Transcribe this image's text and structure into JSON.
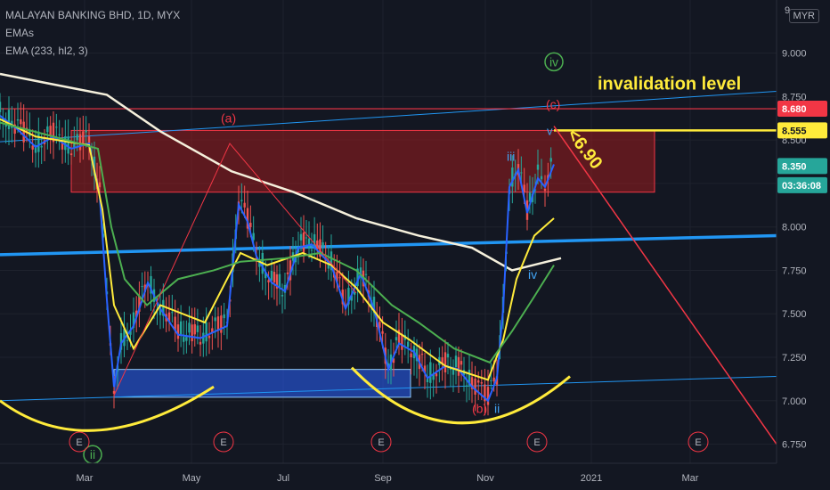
{
  "legend": {
    "symbol": "MALAYAN BANKING BHD, 1D, MYX",
    "ema_label": "EMAs",
    "ema_params": "EMA (233, hl2, 3)"
  },
  "currency": "MYR",
  "colors": {
    "bg": "#131722",
    "up": "#26a69a",
    "down": "#ef5350",
    "ema_fast_blue": "#2962ff",
    "ema_yellow": "#ffeb3b",
    "ema_green": "#4caf50",
    "ema_233": "#f5f0dc",
    "zone_red": "#b71c1c",
    "zone_blue": "#2962ff",
    "trendline_blue": "#2196f3",
    "invalidation_red": "#f23645",
    "yellow_level": "#ffeb3b",
    "text_yellow": "#ffeb3b"
  },
  "price_axis": {
    "ticks": [
      "9.000",
      "8.750",
      "8.500",
      "8.250",
      "8.000",
      "7.750",
      "7.500",
      "7.250",
      "7.000",
      "6.750"
    ],
    "top_partial": "9"
  },
  "time_axis": {
    "ticks": [
      "Mar",
      "May",
      "Jul",
      "Sep",
      "Nov",
      "2021",
      "Mar"
    ]
  },
  "price_tags": [
    {
      "label": "8.680",
      "value": 8.68,
      "bg": "#f23645",
      "fg": "#ffffff"
    },
    {
      "label": "8.555",
      "value": 8.555,
      "bg": "#ffeb3b",
      "fg": "#131722"
    },
    {
      "label": "8.350",
      "value": 8.35,
      "bg": "#26a69a",
      "fg": "#ffffff"
    },
    {
      "label": "03:36:08",
      "value": 8.24,
      "bg": "#26a69a",
      "fg": "#ffffff"
    }
  ],
  "annotations": {
    "invalidation": "invalidation level",
    "target": "<6.90",
    "wave_a": "(a)",
    "wave_b": "(b)",
    "wave_c": "(c)",
    "wave_i": "i",
    "wave_ii": "ii",
    "wave_iii": "iii",
    "wave_iv": "iv",
    "wave_v": "v",
    "wave_iv_circle": "iv",
    "wave_ii_circle": "ii",
    "earnings": "E"
  },
  "chart_data": {
    "type": "candlestick",
    "title": "MALAYAN BANKING BHD, 1D, MYX",
    "ylim": [
      6.64,
      9.28
    ],
    "levels": {
      "invalidation": 8.68,
      "yellow": 8.555,
      "last": 8.35
    },
    "close_path": [
      [
        "Jan",
        8.64
      ],
      [
        "Jan",
        8.55
      ],
      [
        "Feb",
        8.4
      ],
      [
        "Feb",
        8.48
      ],
      [
        "Mar",
        8.46
      ],
      [
        "Mar",
        7.4
      ],
      [
        "Mar",
        7.15
      ],
      [
        "Apr",
        7.4
      ],
      [
        "Apr",
        7.62
      ],
      [
        "May",
        7.45
      ],
      [
        "May",
        7.4
      ],
      [
        "May",
        7.45
      ],
      [
        "Jun",
        8.15
      ],
      [
        "Jun",
        7.9
      ],
      [
        "Jun",
        7.8
      ],
      [
        "Jul",
        7.7
      ],
      [
        "Jul",
        7.9
      ],
      [
        "Jul",
        7.85
      ],
      [
        "Aug",
        7.8
      ],
      [
        "Aug",
        7.55
      ],
      [
        "Aug",
        7.75
      ],
      [
        "Sep",
        7.5
      ],
      [
        "Sep",
        7.25
      ],
      [
        "Sep",
        7.35
      ],
      [
        "Oct",
        7.15
      ],
      [
        "Oct",
        7.3
      ],
      [
        "Oct",
        7.2
      ],
      [
        "Nov",
        7.05
      ],
      [
        "Nov",
        7.7
      ],
      [
        "Nov",
        8.25
      ],
      [
        "Nov",
        8.05
      ],
      [
        "Dec",
        8.3
      ],
      [
        "Dec",
        8.42
      ]
    ]
  }
}
